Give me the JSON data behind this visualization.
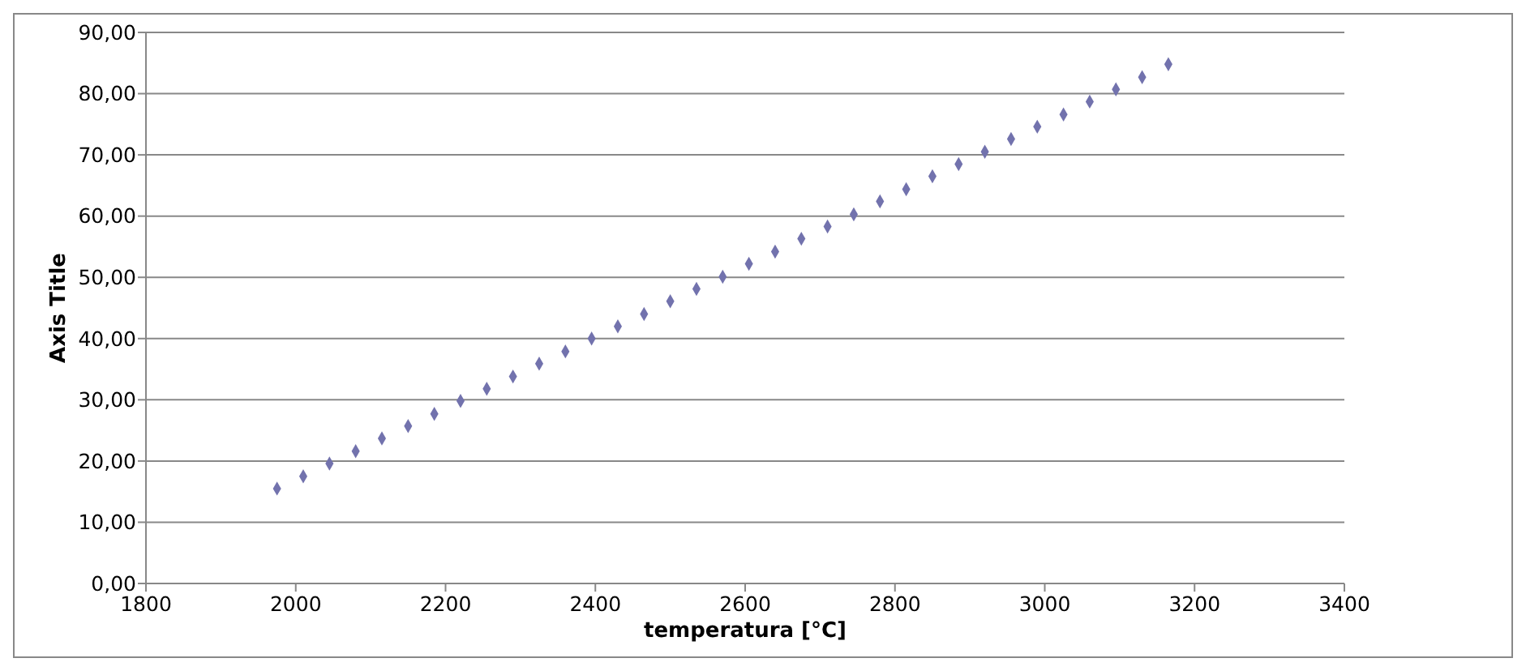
{
  "chart_data": {
    "type": "scatter",
    "xlabel": "temperatura [°C]",
    "ylabel": "Axis Title",
    "x": [
      1975,
      2010,
      2045,
      2080,
      2115,
      2150,
      2185,
      2220,
      2255,
      2290,
      2325,
      2360,
      2395,
      2430,
      2465,
      2500,
      2535,
      2570,
      2605,
      2640,
      2675,
      2710,
      2745,
      2780,
      2815,
      2850,
      2885,
      2920,
      2955,
      2990,
      3025,
      3060,
      3095,
      3130,
      3165
    ],
    "series": [
      {
        "color": "#7272ad",
        "values": [
          15.5,
          17.5,
          19.6,
          21.6,
          23.7,
          25.7,
          27.7,
          29.8,
          31.8,
          33.8,
          35.9,
          37.9,
          40.0,
          42.0,
          44.0,
          46.1,
          48.1,
          50.1,
          52.2,
          54.2,
          56.3,
          58.3,
          60.3,
          62.4,
          64.4,
          66.5,
          68.5,
          70.5,
          72.6,
          74.6,
          76.6,
          78.7,
          80.7,
          82.7,
          84.8
        ]
      }
    ],
    "xlim": [
      1800,
      3400
    ],
    "xticks": [
      1800,
      2000,
      2200,
      2400,
      2600,
      2800,
      3000,
      3200,
      3400
    ],
    "ylim": [
      0,
      90
    ],
    "yticks": [
      {
        "value": 0,
        "label": "0,00"
      },
      {
        "value": 10,
        "label": "10,00"
      },
      {
        "value": 20,
        "label": "20,00"
      },
      {
        "value": 30,
        "label": "30,00"
      },
      {
        "value": 40,
        "label": "40,00"
      },
      {
        "value": 50,
        "label": "50,00"
      },
      {
        "value": 60,
        "label": "60,00"
      },
      {
        "value": 70,
        "label": "70,00"
      },
      {
        "value": 80,
        "label": "80,00"
      },
      {
        "value": 90,
        "label": "90,00"
      }
    ],
    "grid": "y",
    "marker": "diamond"
  }
}
